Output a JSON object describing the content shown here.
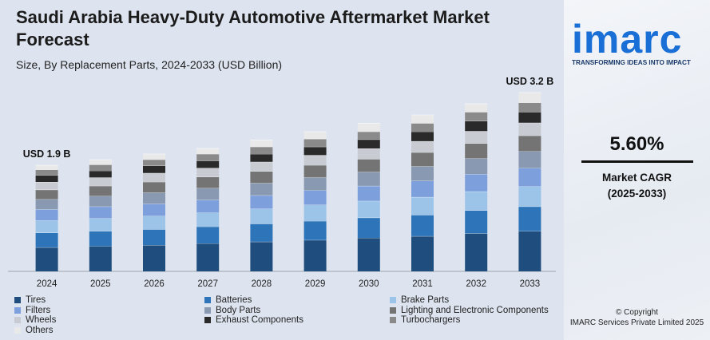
{
  "title": "Saudi Arabia Heavy-Duty Automotive Aftermarket Market Forecast",
  "subtitle": "Size, By Replacement Parts, 2024-2033 (USD Billion)",
  "brand": {
    "logo": "imarc",
    "tagline": "TRANSFORMING IDEAS INTO IMPACT",
    "color": "#1a6fd6"
  },
  "cagr": {
    "value": "5.60%",
    "label": "Market CAGR",
    "period": "(2025-2033)"
  },
  "copyright": {
    "line1": "© Copyright",
    "line2": "IMARC Services Private Limited 2025"
  },
  "chart_data": {
    "type": "bar",
    "stacked": true,
    "categories": [
      "2024",
      "2025",
      "2026",
      "2027",
      "2028",
      "2029",
      "2030",
      "2031",
      "2032",
      "2033"
    ],
    "totals": [
      1.9,
      2.0,
      2.1,
      2.2,
      2.35,
      2.5,
      2.65,
      2.8,
      3.0,
      3.2
    ],
    "annotations": [
      {
        "category": "2024",
        "text": "USD 1.9 B"
      },
      {
        "category": "2033",
        "text": "USD 3.2 B"
      }
    ],
    "ylim": [
      0,
      3.2
    ],
    "grid": false,
    "legend_position": "bottom",
    "series": [
      {
        "name": "Tires",
        "color": "#1f4e7e",
        "values": [
          0.43,
          0.45,
          0.47,
          0.5,
          0.53,
          0.56,
          0.6,
          0.63,
          0.68,
          0.72
        ]
      },
      {
        "name": "Batteries",
        "color": "#2e74b8",
        "values": [
          0.26,
          0.27,
          0.28,
          0.3,
          0.32,
          0.34,
          0.36,
          0.38,
          0.41,
          0.44
        ]
      },
      {
        "name": "Brake Parts",
        "color": "#9cc3e8",
        "values": [
          0.22,
          0.23,
          0.24,
          0.25,
          0.27,
          0.29,
          0.3,
          0.32,
          0.34,
          0.36
        ]
      },
      {
        "name": "Filters",
        "color": "#7d9fdb",
        "values": [
          0.2,
          0.21,
          0.22,
          0.23,
          0.24,
          0.26,
          0.27,
          0.29,
          0.31,
          0.33
        ]
      },
      {
        "name": "Body Parts",
        "color": "#8899b1",
        "values": [
          0.18,
          0.19,
          0.2,
          0.21,
          0.22,
          0.23,
          0.25,
          0.26,
          0.28,
          0.3
        ]
      },
      {
        "name": "Lighting and Electronic Components",
        "color": "#747474",
        "values": [
          0.17,
          0.18,
          0.19,
          0.2,
          0.21,
          0.22,
          0.23,
          0.25,
          0.27,
          0.28
        ]
      },
      {
        "name": "Wheels",
        "color": "#c8ccd2",
        "values": [
          0.14,
          0.15,
          0.16,
          0.16,
          0.17,
          0.18,
          0.19,
          0.2,
          0.22,
          0.23
        ]
      },
      {
        "name": "Exhaust Components",
        "color": "#2a2a2a",
        "values": [
          0.12,
          0.12,
          0.13,
          0.13,
          0.14,
          0.15,
          0.16,
          0.17,
          0.18,
          0.19
        ]
      },
      {
        "name": "Turbochargers",
        "color": "#8a8a8a",
        "values": [
          0.1,
          0.11,
          0.11,
          0.12,
          0.13,
          0.14,
          0.14,
          0.15,
          0.16,
          0.17
        ]
      },
      {
        "name": "Others",
        "color": "#e9e9e9",
        "values": [
          0.08,
          0.09,
          0.1,
          0.1,
          0.12,
          0.13,
          0.15,
          0.15,
          0.15,
          0.18
        ]
      }
    ]
  }
}
